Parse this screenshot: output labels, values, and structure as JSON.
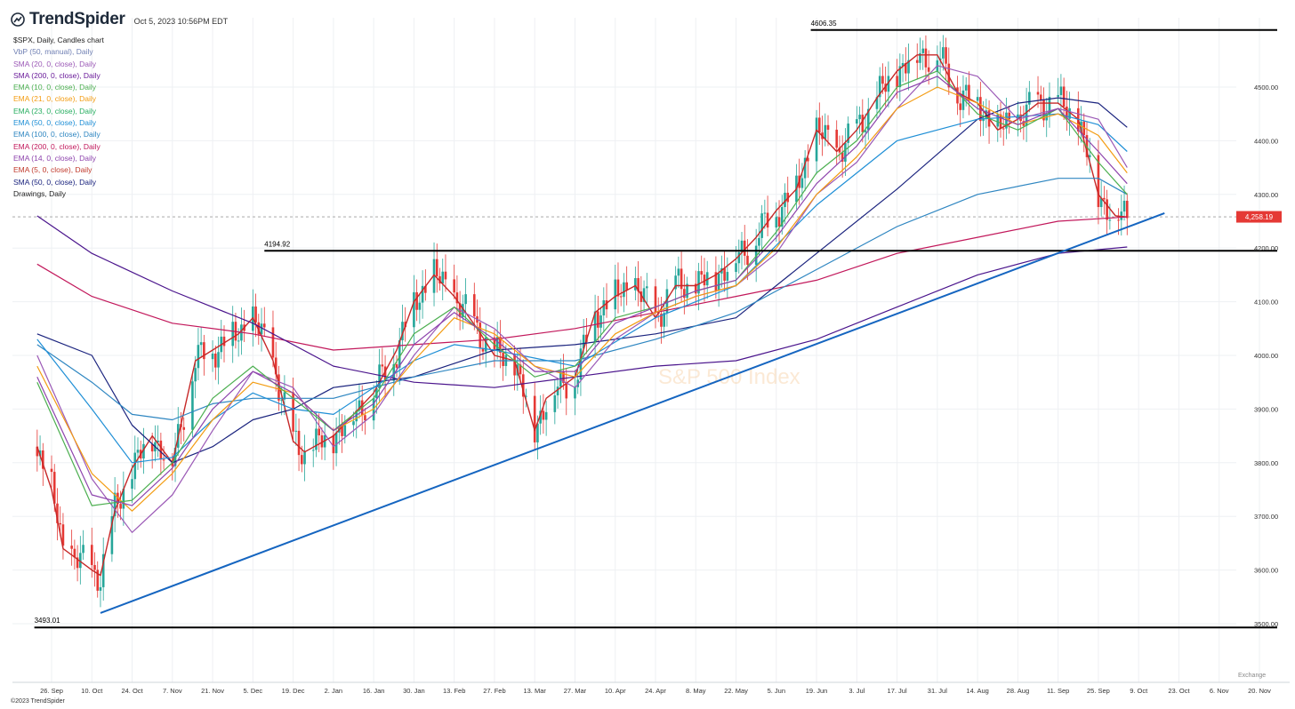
{
  "header": {
    "brand": "TrendSpider",
    "timestamp": "Oct 5, 2023 10:56PM EDT"
  },
  "legend": [
    {
      "label": "$SPX, Daily, Candles chart",
      "color": "#222222"
    },
    {
      "label": "VbP (50, manual), Daily",
      "color": "#6f7fb3"
    },
    {
      "label": "SMA (20, 0, close), Daily",
      "color": "#9b59b6"
    },
    {
      "label": "SMA (200, 0, close), Daily",
      "color": "#6a1b9a"
    },
    {
      "label": "EMA (10, 0, close), Daily",
      "color": "#4caf50"
    },
    {
      "label": "EMA (21, 0, close), Daily",
      "color": "#f39c12"
    },
    {
      "label": "EMA (23, 0, close), Daily",
      "color": "#27ae60"
    },
    {
      "label": "EMA (50, 0, close), Daily",
      "color": "#1f8fd6"
    },
    {
      "label": "EMA (100, 0, close), Daily",
      "color": "#2e86c1"
    },
    {
      "label": "EMA (200, 0, close), Daily",
      "color": "#c2185b"
    },
    {
      "label": "EMA (14, 0, close), Daily",
      "color": "#8e44ad"
    },
    {
      "label": "EMA (5, 0, close), Daily",
      "color": "#c0392b"
    },
    {
      "label": "SMA (50, 0, close), Daily",
      "color": "#1a237e"
    },
    {
      "label": "Drawings, Daily",
      "color": "#222222"
    }
  ],
  "footer": "©2023 TrendSpider",
  "exchange_label": "Exchange",
  "chart_data": {
    "type": "line",
    "symbol": "$SPX",
    "watermark": "S&P 500 Index",
    "x_labels": [
      "26. Sep",
      "10. Oct",
      "24. Oct",
      "7. Nov",
      "21. Nov",
      "5. Dec",
      "19. Dec",
      "2. Jan",
      "16. Jan",
      "30. Jan",
      "13. Feb",
      "27. Feb",
      "13. Mar",
      "27. Mar",
      "10. Apr",
      "24. Apr",
      "8. May",
      "22. May",
      "5. Jun",
      "19. Jun",
      "3. Jul",
      "17. Jul",
      "31. Jul",
      "14. Aug",
      "28. Aug",
      "11. Sep",
      "25. Sep",
      "9. Oct",
      "23. Oct",
      "6. Nov",
      "20. Nov"
    ],
    "y_ticks": [
      3500,
      3600,
      3700,
      3800,
      3900,
      4000,
      4100,
      4200,
      4300,
      4400,
      4500
    ],
    "y_tick_labels": [
      "3500.00",
      "3600.00",
      "3700.00",
      "3800.00",
      "3900.00",
      "4000.00",
      "4100.00",
      "4200.00",
      "4300.00",
      "4400.00",
      "4500.00"
    ],
    "ylim": [
      3400,
      4650
    ],
    "last_price": 4258.19,
    "last_price_label": "4,258.19",
    "price_color": "#e53935",
    "horizontal_levels": [
      {
        "value": 4606.35,
        "label": "4606.35",
        "from": "17. Jun"
      },
      {
        "value": 4194.92,
        "label": "4194.92",
        "from": "9. Dec"
      },
      {
        "value": 3493.01,
        "label": "3493.01",
        "from": "20. Sep"
      }
    ],
    "trendline": {
      "from": {
        "x": "13. Oct",
        "y": 3520
      },
      "to": {
        "x": "18. Oct",
        "y": 4265
      }
    },
    "series": [
      {
        "name": "$SPX close (approx.)",
        "color": "#c62828",
        "x": [
          "21. Sep",
          "26. Sep",
          "30. Sep",
          "5. Oct",
          "10. Oct",
          "13. Oct",
          "18. Oct",
          "24. Oct",
          "31. Oct",
          "7. Nov",
          "15. Nov",
          "21. Nov",
          "30. Nov",
          "5. Dec",
          "12. Dec",
          "19. Dec",
          "23. Dec",
          "2. Jan",
          "9. Jan",
          "16. Jan",
          "24. Jan",
          "30. Jan",
          "6. Feb",
          "13. Feb",
          "21. Feb",
          "27. Feb",
          "6. Mar",
          "13. Mar",
          "17. Mar",
          "27. Mar",
          "3. Apr",
          "10. Apr",
          "17. Apr",
          "24. Apr",
          "1. May",
          "8. May",
          "15. May",
          "22. May",
          "29. May",
          "5. Jun",
          "12. Jun",
          "19. Jun",
          "26. Jun",
          "3. Jul",
          "10. Jul",
          "17. Jul",
          "24. Jul",
          "31. Jul",
          "7. Aug",
          "14. Aug",
          "21. Aug",
          "28. Aug",
          "4. Sep",
          "11. Sep",
          "18. Sep",
          "25. Sep",
          "1. Oct",
          "5. Oct"
        ],
        "y": [
          3830,
          3750,
          3640,
          3620,
          3600,
          3590,
          3710,
          3790,
          3850,
          3800,
          3990,
          4010,
          4040,
          4070,
          3990,
          3840,
          3820,
          3850,
          3890,
          3930,
          4010,
          4100,
          4150,
          4110,
          4050,
          4000,
          3990,
          3860,
          3920,
          3960,
          4080,
          4110,
          4130,
          4070,
          4130,
          4130,
          4150,
          4180,
          4220,
          4270,
          4310,
          4420,
          4380,
          4420,
          4480,
          4530,
          4560,
          4560,
          4490,
          4470,
          4420,
          4440,
          4470,
          4470,
          4440,
          4300,
          4260,
          4258
        ]
      },
      {
        "name": "EMA (200, 0, close)",
        "color": "#c2185b",
        "x": [
          "21. Sep",
          "10. Oct",
          "7. Nov",
          "5. Dec",
          "2. Jan",
          "30. Jan",
          "27. Feb",
          "27. Mar",
          "24. Apr",
          "22. May",
          "19. Jun",
          "17. Jul",
          "14. Aug",
          "11. Sep",
          "5. Oct"
        ],
        "y": [
          4170,
          4110,
          4060,
          4040,
          4010,
          4020,
          4030,
          4050,
          4080,
          4110,
          4140,
          4190,
          4220,
          4250,
          4258
        ]
      },
      {
        "name": "SMA (200, 0, close)",
        "color": "#4a148c",
        "x": [
          "21. Sep",
          "10. Oct",
          "7. Nov",
          "5. Dec",
          "2. Jan",
          "30. Jan",
          "27. Feb",
          "27. Mar",
          "24. Apr",
          "22. May",
          "19. Jun",
          "17. Jul",
          "14. Aug",
          "11. Sep",
          "5. Oct"
        ],
        "y": [
          4260,
          4190,
          4120,
          4060,
          3980,
          3950,
          3940,
          3960,
          3980,
          3990,
          4030,
          4090,
          4150,
          4190,
          4202
        ]
      },
      {
        "name": "SMA (50, 0, close)",
        "color": "#1a237e",
        "x": [
          "21. Sep",
          "10. Oct",
          "24. Oct",
          "7. Nov",
          "21. Nov",
          "5. Dec",
          "19. Dec",
          "2. Jan",
          "30. Jan",
          "27. Feb",
          "27. Mar",
          "24. Apr",
          "22. May",
          "19. Jun",
          "17. Jul",
          "14. Aug",
          "28. Aug",
          "11. Sep",
          "25. Sep",
          "5. Oct"
        ],
        "y": [
          4040,
          4000,
          3870,
          3800,
          3830,
          3880,
          3900,
          3940,
          3960,
          4010,
          4020,
          4040,
          4070,
          4190,
          4310,
          4440,
          4470,
          4480,
          4470,
          4425
        ]
      },
      {
        "name": "EMA (100, 0, close)",
        "color": "#2e86c1",
        "x": [
          "21. Sep",
          "10. Oct",
          "24. Oct",
          "7. Nov",
          "21. Nov",
          "5. Dec",
          "2. Jan",
          "30. Jan",
          "27. Feb",
          "27. Mar",
          "24. Apr",
          "22. May",
          "19. Jun",
          "17. Jul",
          "14. Aug",
          "11. Sep",
          "25. Sep",
          "5. Oct"
        ],
        "y": [
          4020,
          3950,
          3890,
          3880,
          3910,
          3920,
          3920,
          3960,
          3990,
          3990,
          4030,
          4080,
          4160,
          4240,
          4300,
          4330,
          4330,
          4300
        ]
      },
      {
        "name": "EMA (50, 0, close)",
        "color": "#1f8fd6",
        "x": [
          "21. Sep",
          "10. Oct",
          "24. Oct",
          "7. Nov",
          "21. Nov",
          "5. Dec",
          "19. Dec",
          "2. Jan",
          "30. Jan",
          "13. Feb",
          "27. Feb",
          "27. Mar",
          "24. Apr",
          "22. May",
          "19. Jun",
          "17. Jul",
          "14. Aug",
          "11. Sep",
          "25. Sep",
          "5. Oct"
        ],
        "y": [
          4030,
          3900,
          3800,
          3810,
          3880,
          3930,
          3900,
          3890,
          3990,
          4020,
          4010,
          3980,
          4070,
          4130,
          4280,
          4400,
          4440,
          4450,
          4430,
          4380
        ]
      },
      {
        "name": "SMA (20, 0, close)",
        "color": "#9b59b6",
        "x": [
          "21. Sep",
          "10. Oct",
          "24. Oct",
          "7. Nov",
          "21. Nov",
          "5. Dec",
          "19. Dec",
          "2. Jan",
          "16. Jan",
          "30. Jan",
          "13. Feb",
          "27. Feb",
          "13. Mar",
          "27. Mar",
          "10. Apr",
          "24. Apr",
          "8. May",
          "22. May",
          "5. Jun",
          "19. Jun",
          "3. Jul",
          "17. Jul",
          "31. Jul",
          "14. Aug",
          "28. Aug",
          "11. Sep",
          "25. Sep",
          "5. Oct"
        ],
        "y": [
          4000,
          3770,
          3670,
          3740,
          3860,
          3970,
          3940,
          3830,
          3890,
          4000,
          4090,
          4050,
          3980,
          3940,
          4030,
          4080,
          4110,
          4130,
          4190,
          4300,
          4360,
          4460,
          4540,
          4520,
          4440,
          4460,
          4440,
          4350
        ]
      },
      {
        "name": "EMA (21, 0, close)",
        "color": "#f39c12",
        "x": [
          "21. Sep",
          "10. Oct",
          "24. Oct",
          "7. Nov",
          "21. Nov",
          "5. Dec",
          "19. Dec",
          "2. Jan",
          "16. Jan",
          "30. Jan",
          "13. Feb",
          "27. Feb",
          "13. Mar",
          "27. Mar",
          "10. Apr",
          "24. Apr",
          "8. May",
          "22. May",
          "5. Jun",
          "19. Jun",
          "3. Jul",
          "17. Jul",
          "31. Jul",
          "14. Aug",
          "28. Aug",
          "11. Sep",
          "25. Sep",
          "5. Oct"
        ],
        "y": [
          3980,
          3780,
          3710,
          3780,
          3880,
          3950,
          3930,
          3860,
          3900,
          3990,
          4070,
          4040,
          3980,
          3960,
          4040,
          4080,
          4110,
          4130,
          4200,
          4300,
          4370,
          4460,
          4500,
          4470,
          4430,
          4450,
          4410,
          4340
        ]
      },
      {
        "name": "EMA (10, 0, close)",
        "color": "#4caf50",
        "x": [
          "21. Sep",
          "10. Oct",
          "24. Oct",
          "7. Nov",
          "21. Nov",
          "5. Dec",
          "19. Dec",
          "2. Jan",
          "16. Jan",
          "30. Jan",
          "13. Feb",
          "27. Feb",
          "13. Mar",
          "27. Mar",
          "10. Apr",
          "24. Apr",
          "8. May",
          "22. May",
          "5. Jun",
          "19. Jun",
          "3. Jul",
          "17. Jul",
          "31. Jul",
          "14. Aug",
          "28. Aug",
          "11. Sep",
          "25. Sep",
          "5. Oct"
        ],
        "y": [
          3950,
          3720,
          3730,
          3800,
          3920,
          3980,
          3920,
          3860,
          3920,
          4040,
          4090,
          4020,
          3960,
          3980,
          4070,
          4090,
          4120,
          4140,
          4230,
          4340,
          4400,
          4500,
          4530,
          4450,
          4420,
          4460,
          4360,
          4300
        ]
      },
      {
        "name": "EMA (14, 0, close)",
        "color": "#8e44ad",
        "x": [
          "21. Sep",
          "10. Oct",
          "24. Oct",
          "7. Nov",
          "21. Nov",
          "5. Dec",
          "19. Dec",
          "2. Jan",
          "16. Jan",
          "30. Jan",
          "13. Feb",
          "27. Feb",
          "13. Mar",
          "27. Mar",
          "10. Apr",
          "24. Apr",
          "8. May",
          "22. May",
          "5. Jun",
          "19. Jun",
          "3. Jul",
          "17. Jul",
          "31. Jul",
          "14. Aug",
          "28. Aug",
          "11. Sep",
          "25. Sep",
          "5. Oct"
        ],
        "y": [
          3960,
          3740,
          3720,
          3790,
          3900,
          3970,
          3930,
          3860,
          3910,
          4020,
          4080,
          4030,
          3970,
          3970,
          4060,
          4090,
          4120,
          4140,
          4220,
          4320,
          4390,
          4490,
          4520,
          4460,
          4430,
          4460,
          4380,
          4320
        ]
      }
    ]
  }
}
